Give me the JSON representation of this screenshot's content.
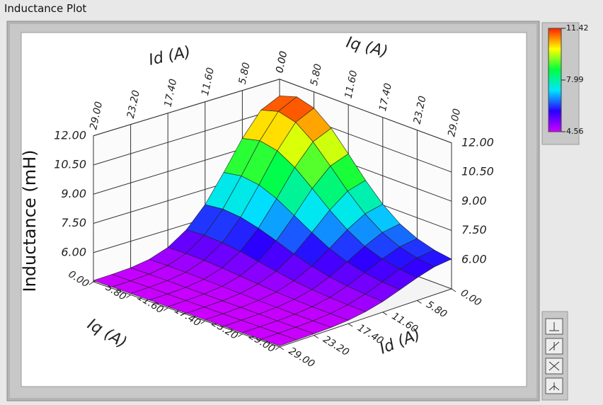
{
  "panel_label": "Inductance Plot",
  "chart_data": {
    "type": "surface",
    "x_label": "Iq (A)",
    "y_label": "Id (A)",
    "z_label": "Inductance (mH)",
    "x": [
      0,
      2.9,
      5.8,
      8.7,
      11.6,
      14.5,
      17.4,
      20.3,
      23.2,
      26.1,
      29
    ],
    "y": [
      0,
      2.9,
      5.8,
      8.7,
      11.6,
      14.5,
      17.4,
      20.3,
      23.2,
      26.1,
      29
    ],
    "z": [
      [
        11.14,
        10.7,
        9.54,
        8.08,
        6.72,
        5.72,
        5.1,
        4.78,
        4.64,
        4.59,
        4.57
      ],
      [
        11.42,
        10.96,
        9.75,
        8.23,
        6.82,
        5.77,
        5.12,
        4.79,
        4.64,
        4.59,
        4.57
      ],
      [
        11.17,
        10.73,
        9.56,
        8.1,
        6.73,
        5.72,
        5.1,
        4.78,
        4.64,
        4.59,
        4.57
      ],
      [
        10.46,
        10.06,
        9.03,
        7.72,
        6.5,
        5.6,
        5.04,
        4.75,
        4.63,
        4.58,
        4.57
      ],
      [
        9.47,
        9.14,
        8.28,
        7.19,
        6.18,
        5.42,
        4.96,
        4.72,
        4.62,
        4.58,
        4.56
      ],
      [
        8.44,
        8.18,
        7.5,
        6.64,
        5.84,
        5.24,
        4.88,
        4.69,
        4.61,
        4.58,
        4.56
      ],
      [
        7.54,
        7.34,
        6.82,
        6.15,
        5.54,
        5.08,
        4.8,
        4.66,
        4.6,
        4.57,
        4.56
      ],
      [
        6.86,
        6.71,
        6.3,
        5.79,
        5.32,
        4.96,
        4.75,
        4.64,
        4.59,
        4.57,
        4.56
      ],
      [
        6.43,
        6.3,
        5.98,
        5.56,
        5.18,
        4.89,
        4.71,
        4.62,
        4.58,
        4.57,
        4.56
      ],
      [
        6.17,
        6.06,
        5.78,
        5.42,
        5.09,
        4.84,
        4.69,
        4.61,
        4.58,
        4.57,
        4.56
      ],
      [
        6.03,
        5.93,
        5.67,
        5.35,
        5.04,
        4.82,
        4.68,
        4.61,
        4.58,
        4.57,
        4.56
      ]
    ],
    "xlim": [
      0,
      29
    ],
    "ylim": [
      0,
      29
    ],
    "zlim": [
      4.5,
      12
    ],
    "xticks": [
      {
        "value": 0,
        "label": "0.00"
      },
      {
        "value": 5.8,
        "label": "5.80"
      },
      {
        "value": 11.6,
        "label": "11.60"
      },
      {
        "value": 17.4,
        "label": "17.40"
      },
      {
        "value": 23.2,
        "label": "23.20"
      },
      {
        "value": 29,
        "label": "29.00"
      }
    ],
    "yticks": [
      {
        "value": 0,
        "label": "0.00"
      },
      {
        "value": 5.8,
        "label": "5.80"
      },
      {
        "value": 11.6,
        "label": "11.60"
      },
      {
        "value": 17.4,
        "label": "17.40"
      },
      {
        "value": 23.2,
        "label": "23.20"
      },
      {
        "value": 29,
        "label": "29.00"
      }
    ],
    "zticks": [
      {
        "value": 6,
        "label": "6.00"
      },
      {
        "value": 7.5,
        "label": "7.50"
      },
      {
        "value": 9,
        "label": "9.00"
      },
      {
        "value": 10.5,
        "label": "10.50"
      },
      {
        "value": 12,
        "label": "12.00"
      }
    ],
    "colormap": [
      "#cc00ff",
      "#2a00ff",
      "#00e5ff",
      "#00ff40",
      "#ffff00",
      "#ff2000"
    ],
    "clim": [
      4.56,
      11.42
    ],
    "cticks": [
      4.56,
      7.99,
      11.42
    ],
    "grid": true
  }
}
